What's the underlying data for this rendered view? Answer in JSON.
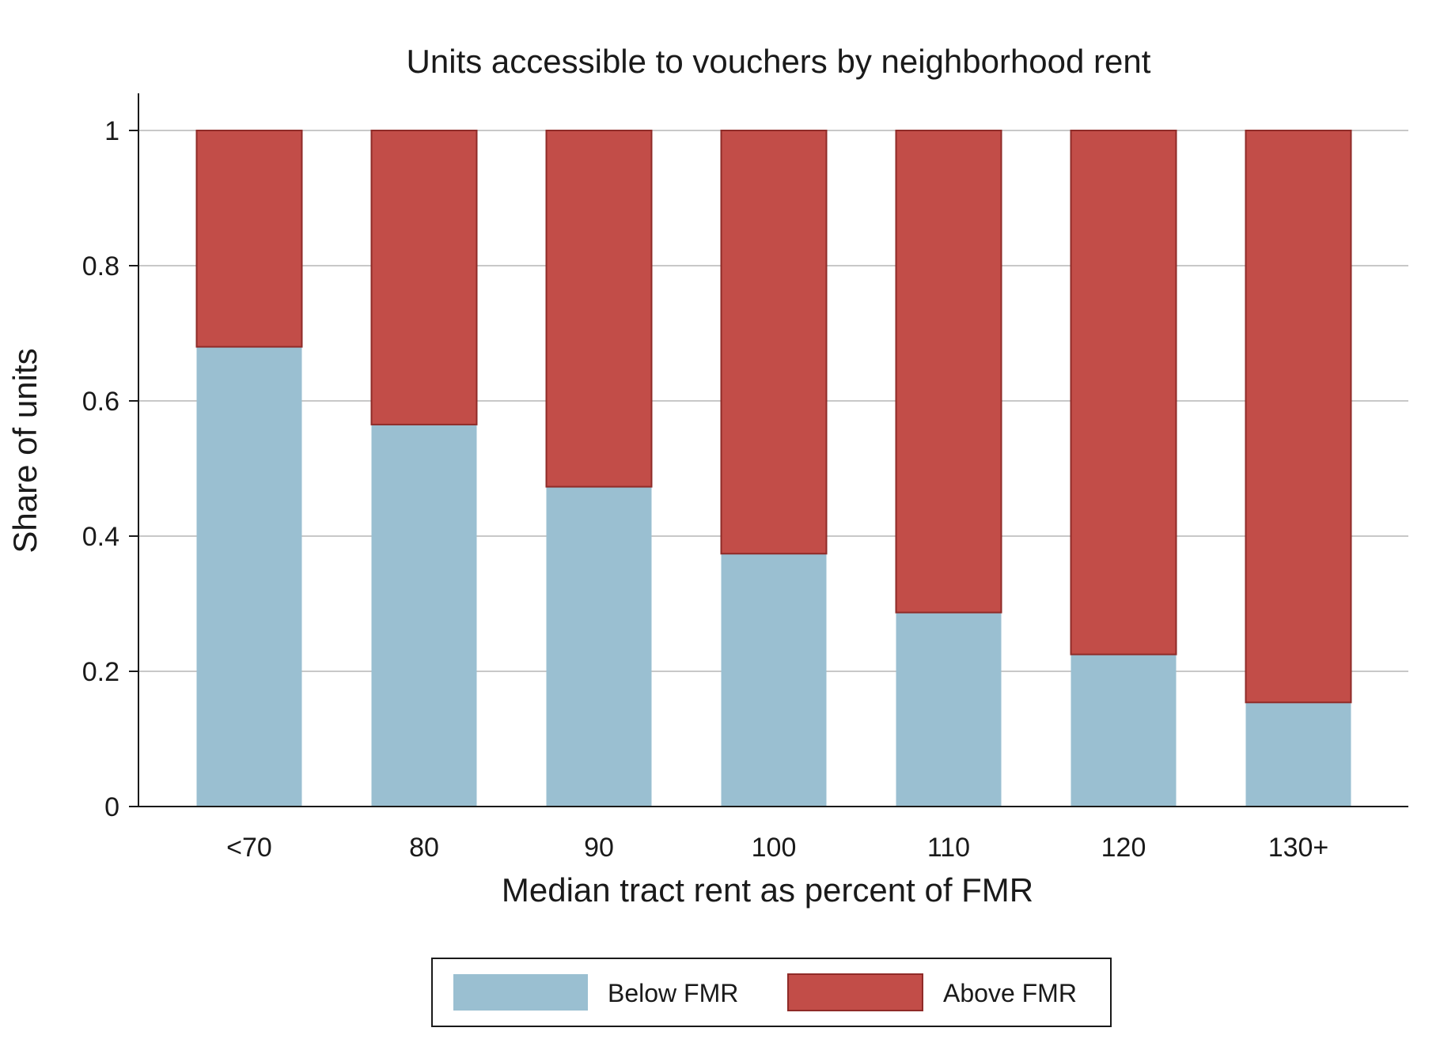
{
  "chart_data": {
    "type": "bar",
    "stacked": true,
    "title": "Units accessible to vouchers by neighborhood rent",
    "xlabel": "Median tract rent as percent of FMR",
    "ylabel": "Share of units",
    "categories": [
      "<70",
      "80",
      "90",
      "100",
      "110",
      "120",
      "130+"
    ],
    "ylim": [
      0,
      1
    ],
    "yticks": [
      "0",
      "0.2",
      "0.4",
      "0.6",
      "0.8",
      "1"
    ],
    "grid": true,
    "legend_position": "bottom-center",
    "series": [
      {
        "name": "Below FMR",
        "color": "#9abfd1",
        "values": [
          0.68,
          0.565,
          0.473,
          0.374,
          0.287,
          0.225,
          0.154
        ]
      },
      {
        "name": "Above FMR",
        "color": "#c24d48",
        "edge_color": "#8f2b28",
        "values": [
          0.32,
          0.435,
          0.527,
          0.626,
          0.713,
          0.775,
          0.846
        ]
      }
    ]
  }
}
